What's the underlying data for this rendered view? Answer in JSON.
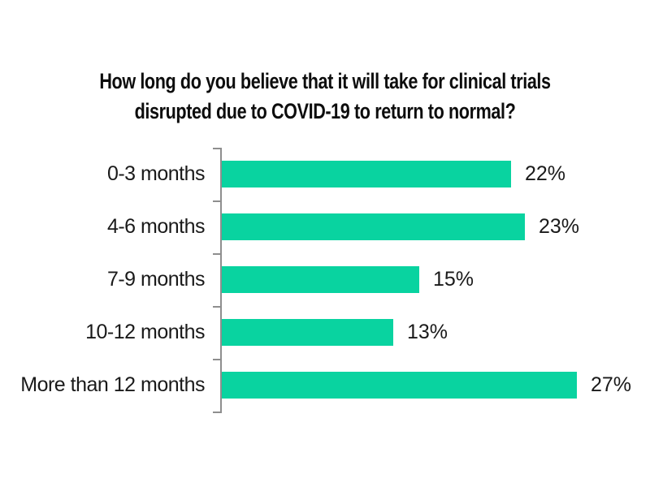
{
  "chart_data": {
    "type": "bar",
    "orientation": "horizontal",
    "title": "How long do you believe that it will take for clinical trials disrupted due to COVID-19 to return to normal?",
    "title_line1": "How long do you believe that it will take for clinical trials",
    "title_line2": "disrupted due to COVID-19 to return to normal?",
    "categories": [
      "0-3 months",
      "4-6 months",
      "7-9 months",
      "10-12 months",
      "More than 12 months"
    ],
    "values": [
      22,
      23,
      15,
      13,
      27
    ],
    "value_labels": [
      "22%",
      "23%",
      "15%",
      "13%",
      "27%"
    ],
    "xlabel": "",
    "ylabel": "",
    "xlim": [
      0,
      30
    ],
    "grid": false,
    "legend": false,
    "data_labels_position": "outside-end",
    "bar_color": "#09D3A0",
    "axis_color": "#8E8E8E",
    "text_color": "#1a1a1a",
    "background_color": "#ffffff"
  }
}
